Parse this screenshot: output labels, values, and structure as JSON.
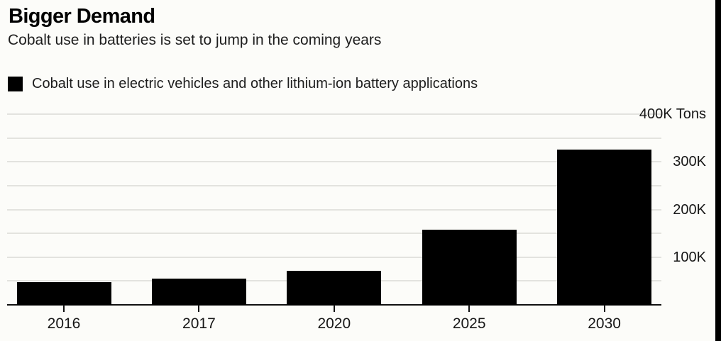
{
  "chart_data": {
    "type": "bar",
    "title": "Bigger Demand",
    "subtitle": "Cobalt use in batteries is set to jump in the coming years",
    "legend_entries": [
      "Cobalt use in electric vehicles and other lithium-ion battery applications"
    ],
    "categories": [
      "2016",
      "2017",
      "2020",
      "2025",
      "2030"
    ],
    "values": [
      48,
      55,
      72,
      158,
      325
    ],
    "unit": "K Tons",
    "ylim": [
      0,
      400
    ],
    "ytick_step": 50,
    "ytick_labeled": [
      {
        "value": 400,
        "label": "400K Tons"
      },
      {
        "value": 300,
        "label": "300K"
      },
      {
        "value": 200,
        "label": "200K"
      },
      {
        "value": 100,
        "label": "100K"
      }
    ],
    "grid": true,
    "legend_position": "top-left",
    "axis_label_side": "right",
    "bar_color": "#000000"
  },
  "colors": {
    "background": "#fcfcf9",
    "bar": "#030303",
    "gridline": "#e3e3df",
    "axis_line": "#111111",
    "text_primary": "#000000",
    "text_secondary": "#1d1d1d",
    "right_strip": "#000000"
  }
}
